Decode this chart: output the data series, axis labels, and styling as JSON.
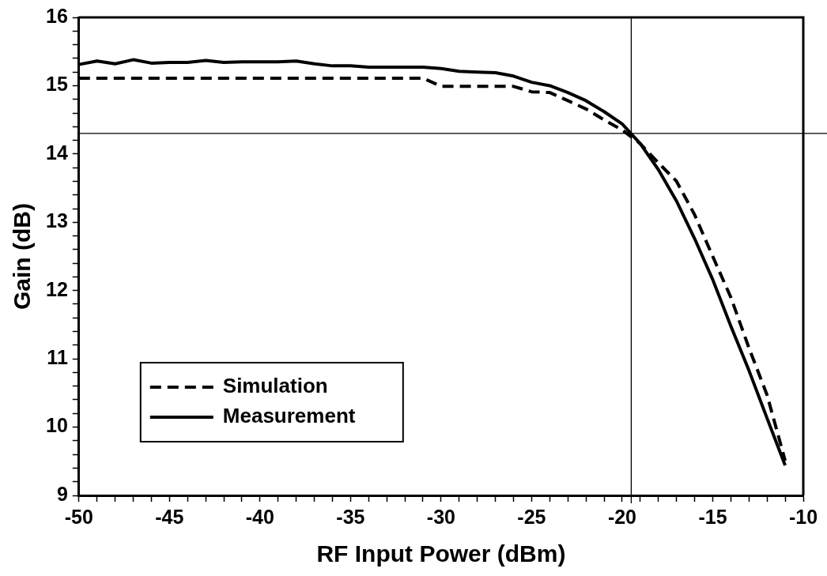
{
  "chart_data": {
    "type": "line",
    "xlabel": "RF Input Power (dBm)",
    "ylabel": "Gain (dB)",
    "x": [
      -50,
      -49,
      -48,
      -47,
      -46,
      -45,
      -44,
      -43,
      -42,
      -41,
      -40,
      -39,
      -38,
      -37,
      -36,
      -35,
      -34,
      -33,
      -32,
      -31,
      -30,
      -29,
      -28,
      -27,
      -26,
      -25,
      -24,
      -23,
      -22,
      -21,
      -20,
      -19,
      -18,
      -17,
      -16,
      -15,
      -14,
      -13,
      -12,
      -11
    ],
    "series": [
      {
        "name": "Simulation",
        "color": "#000000",
        "line_style": "dashed",
        "values": [
          15.11,
          15.11,
          15.11,
          15.11,
          15.11,
          15.11,
          15.11,
          15.11,
          15.11,
          15.11,
          15.11,
          15.11,
          15.11,
          15.11,
          15.11,
          15.11,
          15.11,
          15.11,
          15.11,
          15.11,
          14.99,
          14.99,
          14.99,
          14.99,
          14.99,
          14.91,
          14.9,
          14.78,
          14.66,
          14.5,
          14.35,
          14.15,
          13.87,
          13.6,
          13.11,
          12.5,
          11.9,
          11.16,
          10.47,
          9.51
        ]
      },
      {
        "name": "Measurement",
        "color": "#000000",
        "line_style": "solid",
        "values": [
          15.31,
          15.36,
          15.32,
          15.38,
          15.33,
          15.34,
          15.34,
          15.37,
          15.34,
          15.35,
          15.35,
          15.35,
          15.36,
          15.32,
          15.29,
          15.29,
          15.27,
          15.27,
          15.27,
          15.27,
          15.25,
          15.21,
          15.2,
          15.19,
          15.14,
          15.05,
          15.0,
          14.9,
          14.78,
          14.62,
          14.44,
          14.15,
          13.77,
          13.31,
          12.76,
          12.16,
          11.48,
          10.83,
          10.13,
          9.44
        ]
      }
    ],
    "xlim": [
      -50,
      -10
    ],
    "xticks": [
      -50,
      {
        "value": -49,
        "label": null
      },
      {
        "value": -48,
        "label": null
      },
      {
        "value": -47,
        "label": null
      },
      {
        "value": -46,
        "label": null
      },
      -45,
      {
        "value": -44,
        "label": null
      },
      {
        "value": -43,
        "label": null
      },
      {
        "value": -42,
        "label": null
      },
      {
        "value": -41,
        "label": null
      },
      -40,
      {
        "value": -39,
        "label": null
      },
      {
        "value": -38,
        "label": null
      },
      {
        "value": -37,
        "label": null
      },
      {
        "value": -36,
        "label": null
      },
      -35,
      {
        "value": -34,
        "label": null
      },
      {
        "value": -33,
        "label": null
      },
      {
        "value": -32,
        "label": null
      },
      {
        "value": -31,
        "label": null
      },
      -30,
      {
        "value": -29,
        "label": null
      },
      {
        "value": -28,
        "label": null
      },
      {
        "value": -27,
        "label": null
      },
      {
        "value": -26,
        "label": null
      },
      -25,
      {
        "value": -24,
        "label": null
      },
      {
        "value": -23,
        "label": null
      },
      {
        "value": -22,
        "label": null
      },
      {
        "value": -21,
        "label": null
      },
      -20,
      {
        "value": -19,
        "label": null
      },
      {
        "value": -18,
        "label": null
      },
      {
        "value": -17,
        "label": null
      },
      {
        "value": -16,
        "label": null
      },
      -15,
      {
        "value": -14,
        "label": null
      },
      {
        "value": -13,
        "label": null
      },
      {
        "value": -12,
        "label": null
      },
      {
        "value": -11,
        "label": null
      },
      -10
    ],
    "ylim": [
      9,
      16
    ],
    "yticks": [
      9,
      {
        "value": 9.2,
        "label": null
      },
      {
        "value": 9.4,
        "label": null
      },
      {
        "value": 9.6,
        "label": null
      },
      {
        "value": 9.8,
        "label": null
      },
      10,
      {
        "value": 10.2,
        "label": null
      },
      {
        "value": 10.4,
        "label": null
      },
      {
        "value": 10.6,
        "label": null
      },
      {
        "value": 10.8,
        "label": null
      },
      11,
      {
        "value": 11.2,
        "label": null
      },
      {
        "value": 11.4,
        "label": null
      },
      {
        "value": 11.6,
        "label": null
      },
      {
        "value": 11.8,
        "label": null
      },
      12,
      {
        "value": 12.2,
        "label": null
      },
      {
        "value": 12.4,
        "label": null
      },
      {
        "value": 12.6,
        "label": null
      },
      {
        "value": 12.8,
        "label": null
      },
      13,
      {
        "value": 13.2,
        "label": null
      },
      {
        "value": 13.4,
        "label": null
      },
      {
        "value": 13.6,
        "label": null
      },
      {
        "value": 13.8,
        "label": null
      },
      14,
      {
        "value": 14.2,
        "label": null
      },
      {
        "value": 14.4,
        "label": null
      },
      {
        "value": 14.6,
        "label": null
      },
      {
        "value": 14.8,
        "label": null
      },
      15,
      {
        "value": 15.2,
        "label": null
      },
      {
        "value": 15.4,
        "label": null
      },
      {
        "value": 15.6,
        "label": null
      },
      {
        "value": 15.8,
        "label": null
      },
      16
    ],
    "ref_lines": [
      {
        "axis": "y",
        "value": 14.3,
        "color": "#000000"
      },
      {
        "axis": "x",
        "value": -19.5,
        "color": "#000000"
      }
    ],
    "legend": "bottom left",
    "marker": "none",
    "grid": false
  }
}
